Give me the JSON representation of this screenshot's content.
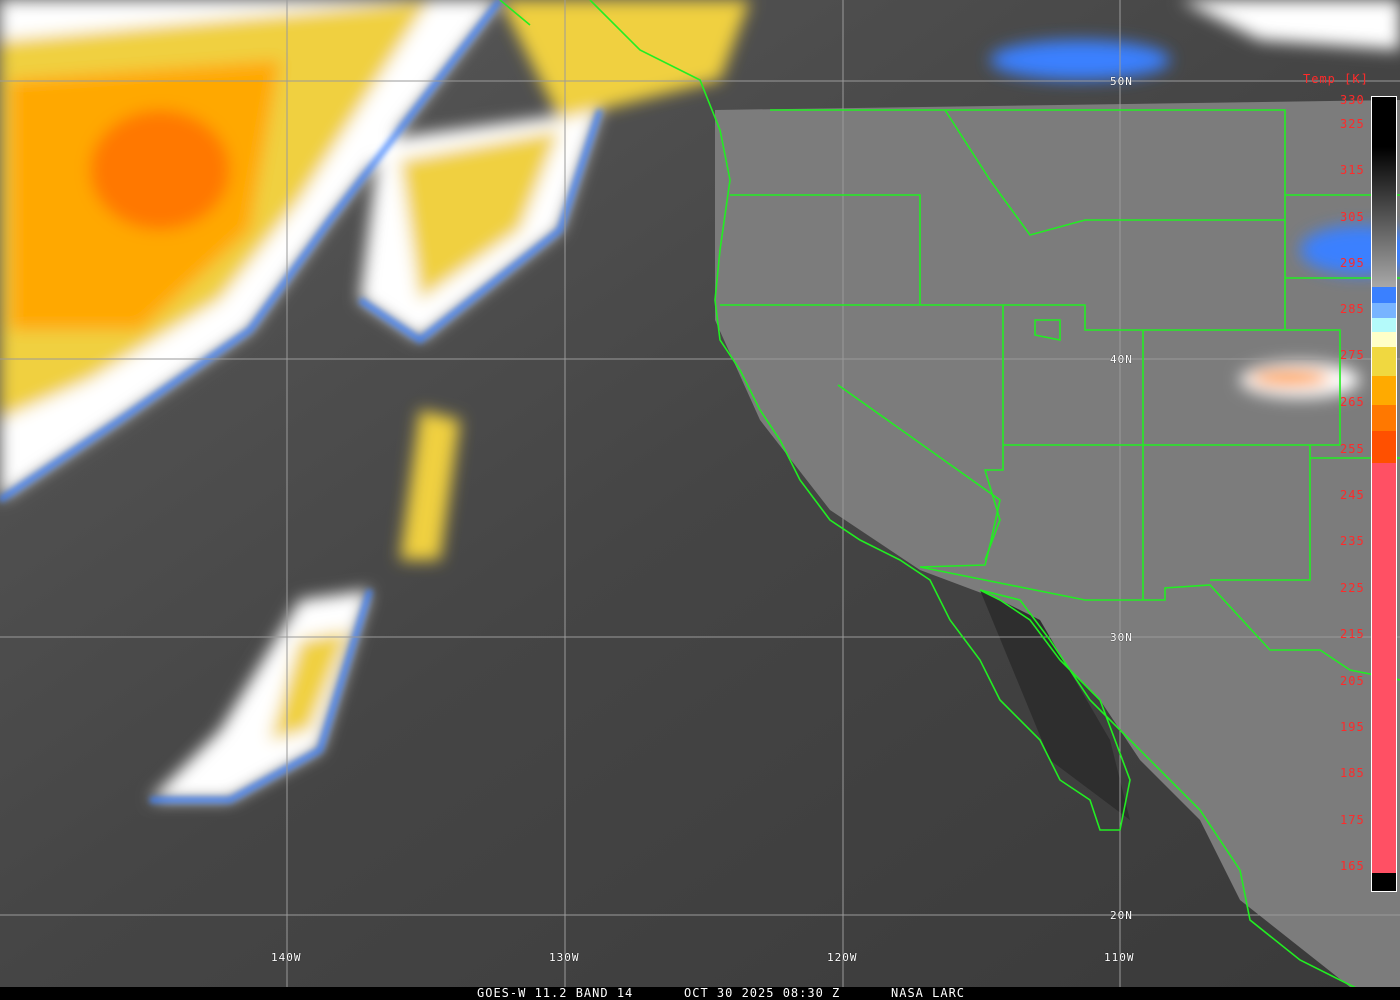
{
  "grid": {
    "latitudes": [
      "50N",
      "40N",
      "30N",
      "20N"
    ],
    "longitudes": [
      "140W",
      "130W",
      "120W",
      "110W"
    ]
  },
  "colorbar": {
    "title": "Temp [K]",
    "ticks": [
      "330",
      "325",
      "315",
      "305",
      "295",
      "285",
      "275",
      "265",
      "255",
      "245",
      "235",
      "225",
      "215",
      "205",
      "195",
      "185",
      "175",
      "165"
    ],
    "tick_color": "#ff2a2a",
    "border_color": "#ffffff",
    "boundary_color": "#22ee22"
  },
  "caption": {
    "satellite": "GOES-W 11.2 BAND 14",
    "datetime": "OCT 30 2025 08:30 Z",
    "source": "NASA LARC"
  }
}
